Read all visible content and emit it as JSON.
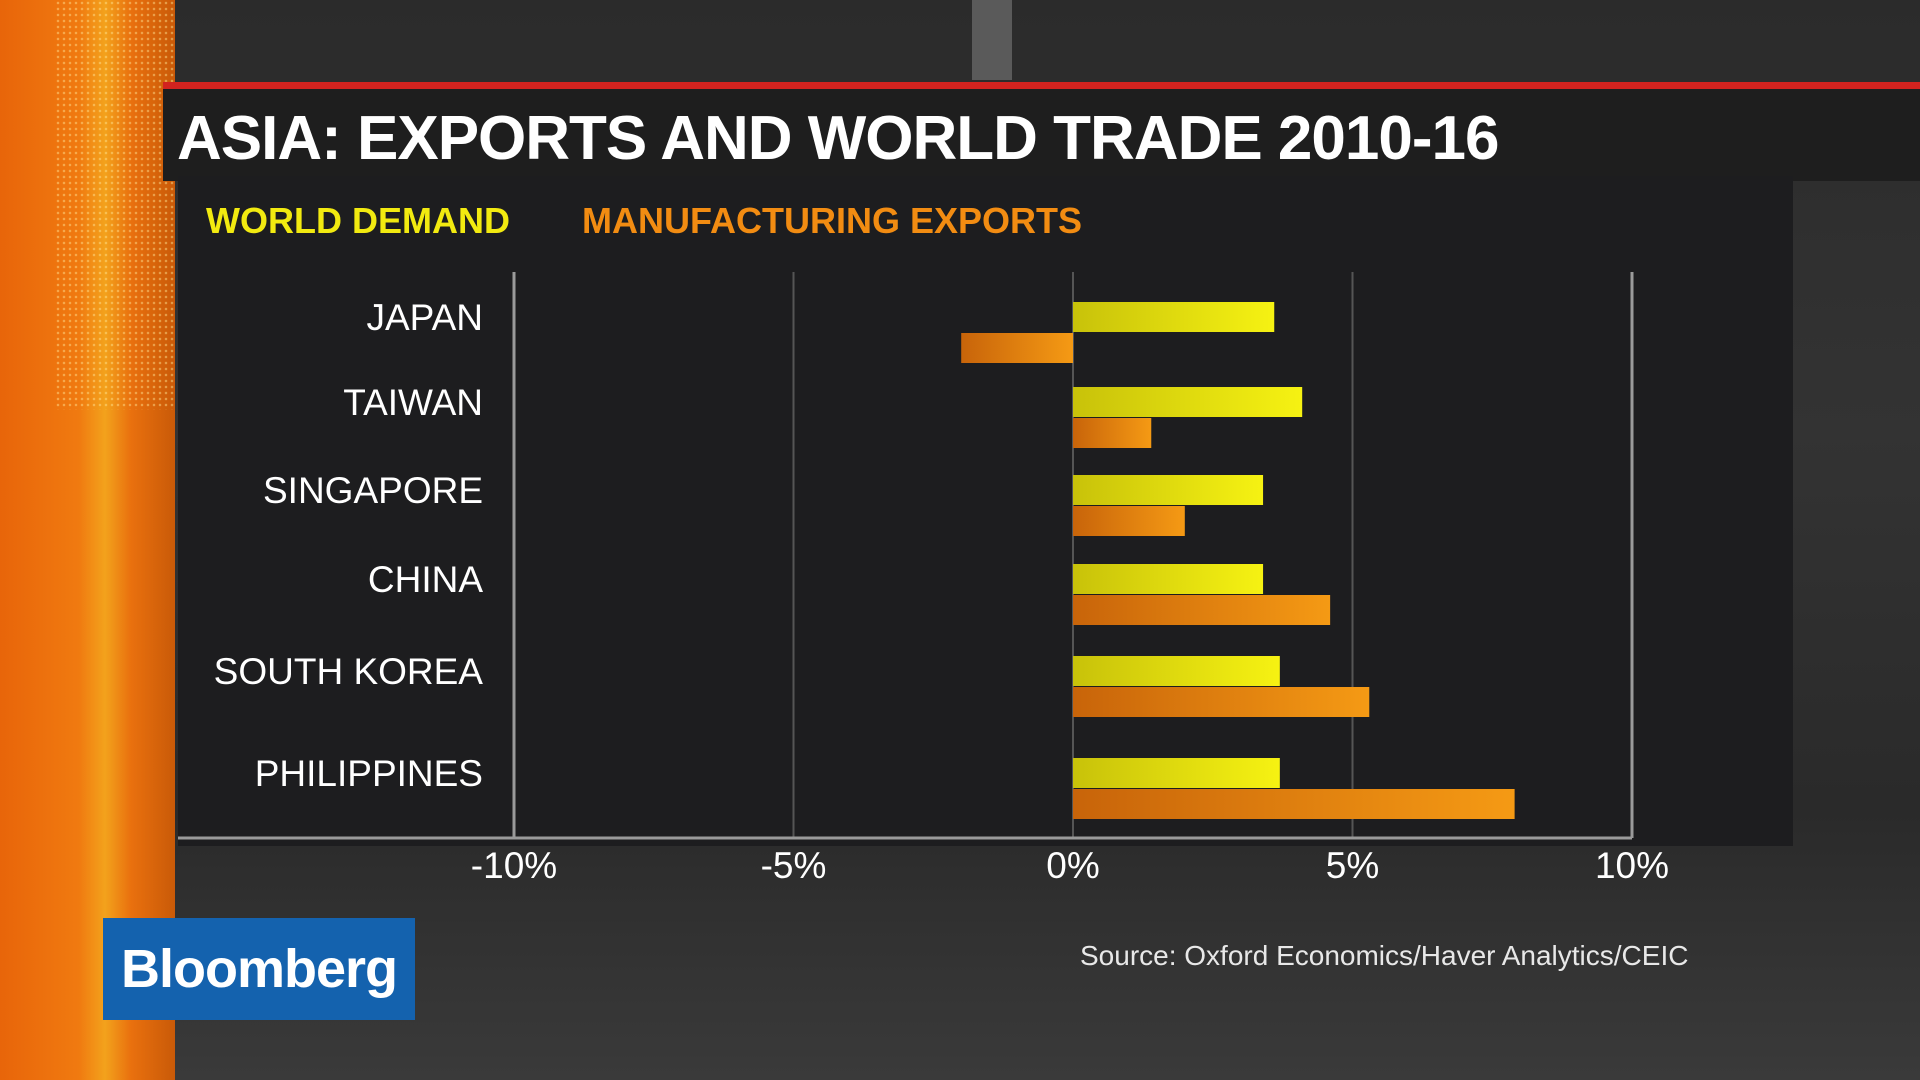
{
  "title": "ASIA: EXPORTS AND WORLD TRADE 2010-16",
  "logo_text": "Bloomberg",
  "source": "Source: Oxford Economics/Haver Analytics/CEIC",
  "colors": {
    "world_demand": "#f2ea10",
    "manufacturing_exports": "#f28c12",
    "title_accent": "#d2231f",
    "logo_bg": "#1462ae"
  },
  "chart_data": {
    "type": "bar",
    "orientation": "horizontal",
    "title": "ASIA: EXPORTS AND WORLD TRADE 2010-16",
    "categories": [
      "JAPAN",
      "TAIWAN",
      "SINGAPORE",
      "CHINA",
      "SOUTH KOREA",
      "PHILIPPINES"
    ],
    "series": [
      {
        "name": "WORLD DEMAND",
        "values": [
          3.6,
          4.1,
          3.4,
          3.4,
          3.7,
          3.7
        ]
      },
      {
        "name": "MANUFACTURING EXPORTS",
        "values": [
          -2.0,
          1.4,
          2.0,
          4.6,
          5.3,
          7.9
        ]
      }
    ],
    "xlim": [
      -10,
      10
    ],
    "xticks": [
      -10,
      -5,
      0,
      5,
      10
    ],
    "xtick_labels": [
      "-10%",
      "-5%",
      "0%",
      "5%",
      "10%"
    ],
    "grid": true,
    "legend_position": "top-left"
  }
}
